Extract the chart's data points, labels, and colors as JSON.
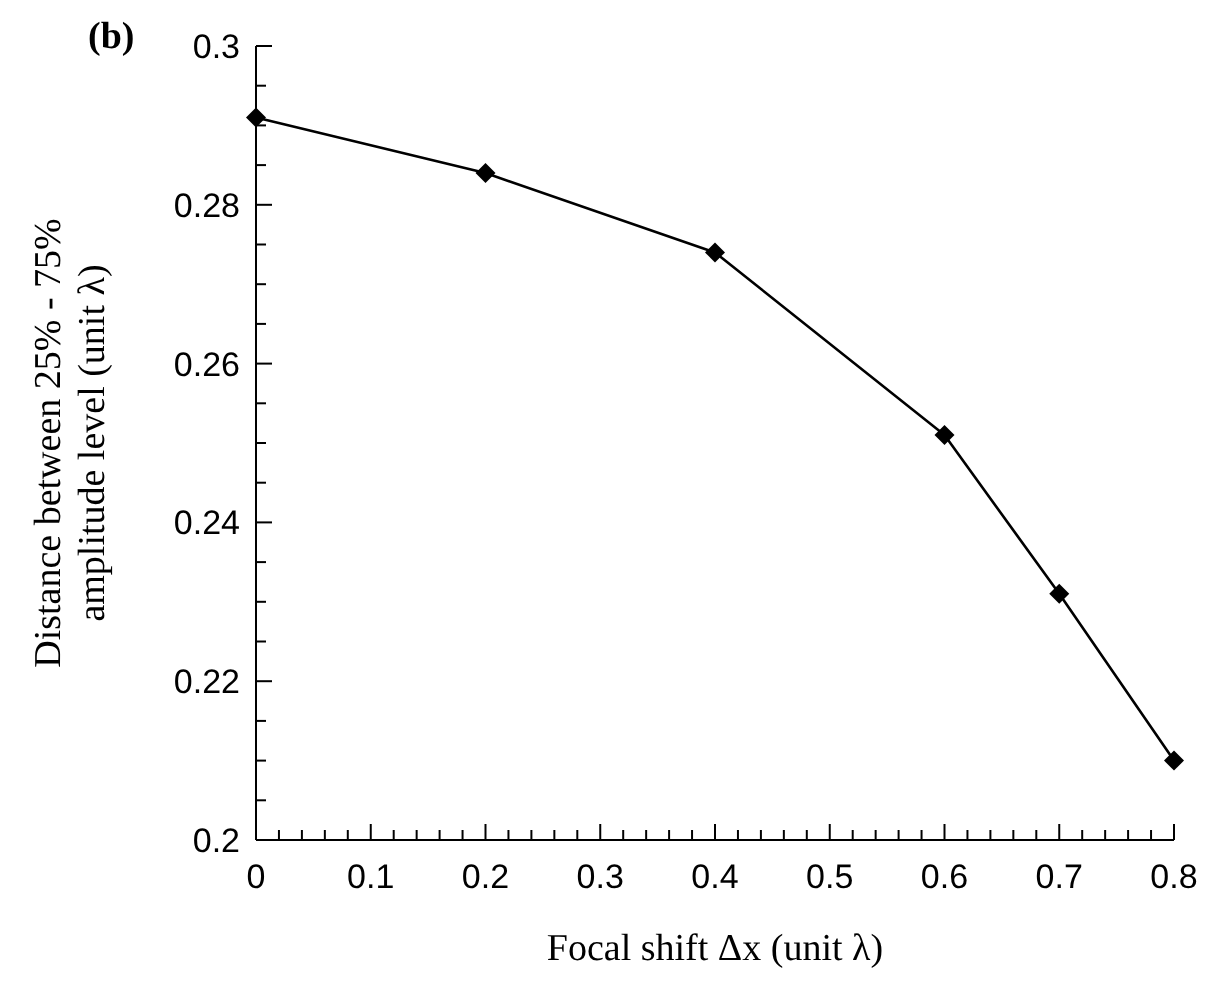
{
  "chart_data": {
    "type": "line",
    "title": "(b)",
    "xlabel": "Focal shift Δx (unit λ)",
    "ylabel": "Distance between 25% - 75%\namplitude level (unit λ)",
    "x": [
      0,
      0.2,
      0.4,
      0.6,
      0.7,
      0.8
    ],
    "series": [
      {
        "color": "#000000",
        "values": [
          0.291,
          0.284,
          0.274,
          0.251,
          0.231,
          0.21
        ]
      }
    ],
    "xlim": [
      0,
      0.8
    ],
    "xticks": [
      0,
      {
        "value": 0.02,
        "label": null
      },
      {
        "value": 0.04,
        "label": null
      },
      {
        "value": 0.06,
        "label": null
      },
      {
        "value": 0.08,
        "label": null
      },
      0.1,
      {
        "value": 0.12,
        "label": null
      },
      {
        "value": 0.14,
        "label": null
      },
      {
        "value": 0.16,
        "label": null
      },
      {
        "value": 0.18,
        "label": null
      },
      0.2,
      {
        "value": 0.22,
        "label": null
      },
      {
        "value": 0.24,
        "label": null
      },
      {
        "value": 0.26,
        "label": null
      },
      {
        "value": 0.28,
        "label": null
      },
      0.3,
      {
        "value": 0.32,
        "label": null
      },
      {
        "value": 0.34,
        "label": null
      },
      {
        "value": 0.36,
        "label": null
      },
      {
        "value": 0.38,
        "label": null
      },
      0.4,
      {
        "value": 0.42,
        "label": null
      },
      {
        "value": 0.44,
        "label": null
      },
      {
        "value": 0.46,
        "label": null
      },
      {
        "value": 0.48,
        "label": null
      },
      0.5,
      {
        "value": 0.52,
        "label": null
      },
      {
        "value": 0.54,
        "label": null
      },
      {
        "value": 0.56,
        "label": null
      },
      {
        "value": 0.58,
        "label": null
      },
      0.6,
      {
        "value": 0.62,
        "label": null
      },
      {
        "value": 0.64,
        "label": null
      },
      {
        "value": 0.66,
        "label": null
      },
      {
        "value": 0.68,
        "label": null
      },
      0.7,
      {
        "value": 0.72,
        "label": null
      },
      {
        "value": 0.74,
        "label": null
      },
      {
        "value": 0.76,
        "label": null
      },
      {
        "value": 0.78,
        "label": null
      },
      0.8
    ],
    "ylim": [
      0.2,
      0.3
    ],
    "yticks": [
      0.2,
      {
        "value": 0.205,
        "label": null
      },
      {
        "value": 0.21,
        "label": null
      },
      {
        "value": 0.215,
        "label": null
      },
      0.22,
      {
        "value": 0.225,
        "label": null
      },
      {
        "value": 0.23,
        "label": null
      },
      {
        "value": 0.235,
        "label": null
      },
      0.24,
      {
        "value": 0.245,
        "label": null
      },
      {
        "value": 0.25,
        "label": null
      },
      {
        "value": 0.255,
        "label": null
      },
      0.26,
      {
        "value": 0.265,
        "label": null
      },
      {
        "value": 0.27,
        "label": null
      },
      {
        "value": 0.275,
        "label": null
      },
      0.28,
      {
        "value": 0.285,
        "label": null
      },
      {
        "value": 0.29,
        "label": null
      },
      {
        "value": 0.295,
        "label": null
      },
      0.3
    ],
    "grid": false,
    "legend": false,
    "marker": "diamond",
    "line_style": "solid"
  }
}
